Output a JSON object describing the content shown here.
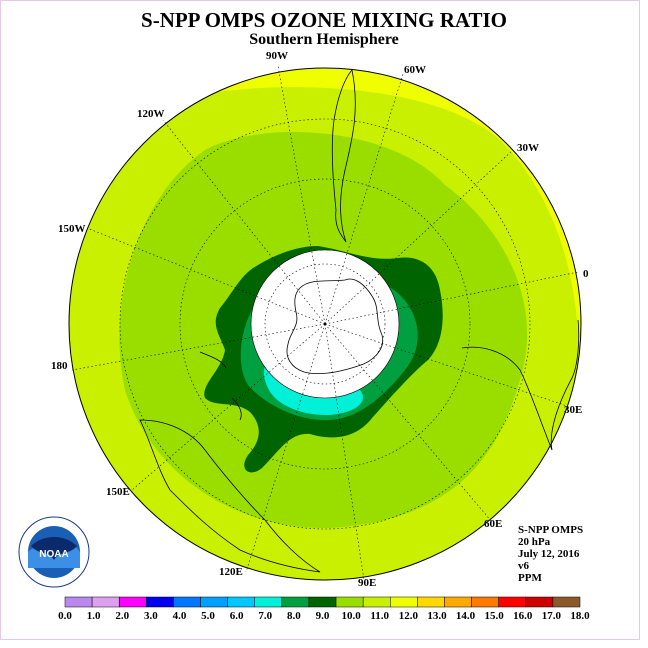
{
  "title": "S-NPP OMPS OZONE MIXING RATIO",
  "subtitle": "Southern Hemisphere",
  "longitude_labels": {
    "deg_90w": "90W",
    "deg_60w": "60W",
    "deg_120w": "120W",
    "deg_30w": "30W",
    "deg_150w": "150W",
    "deg_0": "0",
    "deg_180": "180",
    "deg_30e": "30E",
    "deg_150e": "150E",
    "deg_60e": "60E",
    "deg_120e": "120E",
    "deg_90e": "90E"
  },
  "info": {
    "instrument": "S-NPP OMPS",
    "level": "20 hPa",
    "date": "July 12, 2016",
    "version": "v6",
    "units": "PPM"
  },
  "logo": {
    "name": "NOAA",
    "ring_text": "NATIONAL OCEANIC AND ATMOSPHERIC ADMINISTRATION · U.S. DEPARTMENT OF COMMERCE"
  },
  "legend": {
    "ticks": [
      "0.0",
      "1.0",
      "2.0",
      "3.0",
      "4.0",
      "5.0",
      "6.0",
      "7.0",
      "8.0",
      "9.0",
      "10.0",
      "11.0",
      "12.0",
      "13.0",
      "14.0",
      "15.0",
      "16.0",
      "17.0",
      "18.0"
    ],
    "colors": [
      "#bb88ee",
      "#dda0f0",
      "#ff00ff",
      "#0000ee",
      "#0078ff",
      "#00a0ff",
      "#00c8ff",
      "#00f0d8",
      "#00a040",
      "#006400",
      "#9ade00",
      "#c8f000",
      "#f0ff00",
      "#ffd800",
      "#ffa800",
      "#ff7800",
      "#ff0000",
      "#cc0000",
      "#8b5a2b"
    ]
  },
  "palette": {
    "yellow_band": "#f0ff00",
    "yellow_green": "#c8f000",
    "light_green": "#9ade00",
    "dark_green": "#006400",
    "mid_green": "#00a040",
    "cyan": "#00f0d8",
    "no_data": "#ffffff"
  }
}
